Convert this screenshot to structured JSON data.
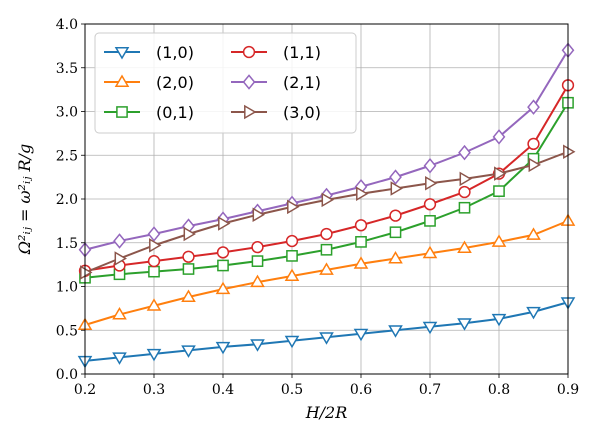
{
  "chart_data": {
    "type": "line",
    "xlabel": "H/2R",
    "ylabel": "Ω²ᵢⱼ = ω²ᵢⱼ R/g",
    "xlim": [
      0.2,
      0.9
    ],
    "ylim": [
      0.0,
      4.0
    ],
    "xticks": [
      "0.2",
      "0.3",
      "0.4",
      "0.5",
      "0.6",
      "0.7",
      "0.8",
      "0.9"
    ],
    "yticks": [
      "0.0",
      "0.5",
      "1.0",
      "1.5",
      "2.0",
      "2.5",
      "3.0",
      "3.5",
      "4.0"
    ],
    "grid": true,
    "legend_position": "top-left",
    "x": [
      0.2,
      0.25,
      0.3,
      0.35,
      0.4,
      0.45,
      0.5,
      0.55,
      0.6,
      0.65,
      0.7,
      0.75,
      0.8,
      0.85,
      0.9
    ],
    "series": [
      {
        "name": "(1,0)",
        "color": "#1f77b4",
        "marker": "triangle-down",
        "values": [
          0.15,
          0.19,
          0.23,
          0.27,
          0.31,
          0.34,
          0.38,
          0.42,
          0.46,
          0.5,
          0.54,
          0.58,
          0.63,
          0.71,
          0.82
        ]
      },
      {
        "name": "(2,0)",
        "color": "#ff7f0e",
        "marker": "triangle-up",
        "values": [
          0.56,
          0.68,
          0.78,
          0.88,
          0.97,
          1.05,
          1.12,
          1.19,
          1.26,
          1.32,
          1.38,
          1.44,
          1.51,
          1.59,
          1.75
        ]
      },
      {
        "name": "(0,1)",
        "color": "#2ca02c",
        "marker": "square",
        "values": [
          1.1,
          1.14,
          1.17,
          1.2,
          1.24,
          1.29,
          1.35,
          1.42,
          1.51,
          1.62,
          1.75,
          1.9,
          2.09,
          2.46,
          3.1
        ]
      },
      {
        "name": "(1,1)",
        "color": "#d62728",
        "marker": "circle",
        "values": [
          1.18,
          1.24,
          1.29,
          1.34,
          1.39,
          1.45,
          1.52,
          1.6,
          1.7,
          1.81,
          1.94,
          2.08,
          2.29,
          2.63,
          3.3
        ]
      },
      {
        "name": "(2,1)",
        "color": "#9467bd",
        "marker": "diamond",
        "values": [
          1.42,
          1.52,
          1.6,
          1.69,
          1.77,
          1.86,
          1.95,
          2.04,
          2.14,
          2.25,
          2.38,
          2.53,
          2.71,
          3.05,
          3.7
        ]
      },
      {
        "name": "(3,0)",
        "color": "#8c564b",
        "marker": "triangle-right",
        "values": [
          1.16,
          1.32,
          1.47,
          1.6,
          1.72,
          1.82,
          1.91,
          1.99,
          2.06,
          2.12,
          2.18,
          2.23,
          2.29,
          2.39,
          2.54
        ]
      }
    ]
  }
}
